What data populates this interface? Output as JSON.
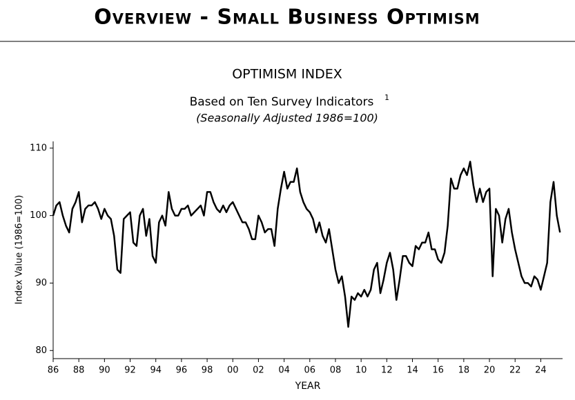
{
  "chart_data": {
    "type": "line",
    "header": "Overview - Small Business Optimism",
    "title": "OPTIMISM INDEX",
    "subtitle": "Based on Ten Survey Indicators",
    "subtitle_footnote": "1",
    "note": "(Seasonally Adjusted 1986=100)",
    "ylabel": "Index Value (1986=100)",
    "xlabel": "YEAR",
    "color": "#000000",
    "xlim": [
      1986,
      2025.7
    ],
    "ylim": [
      78.8,
      111
    ],
    "yticks": [
      80,
      90,
      100,
      110
    ],
    "xticks": [
      {
        "value": 1986,
        "label": "86"
      },
      {
        "value": 1988,
        "label": "88"
      },
      {
        "value": 1990,
        "label": "90"
      },
      {
        "value": 1992,
        "label": "92"
      },
      {
        "value": 1994,
        "label": "94"
      },
      {
        "value": 1996,
        "label": "96"
      },
      {
        "value": 1998,
        "label": "98"
      },
      {
        "value": 2000,
        "label": "00"
      },
      {
        "value": 2002,
        "label": "02"
      },
      {
        "value": 2004,
        "label": "04"
      },
      {
        "value": 2006,
        "label": "06"
      },
      {
        "value": 2008,
        "label": "08"
      },
      {
        "value": 2010,
        "label": "10"
      },
      {
        "value": 2012,
        "label": "12"
      },
      {
        "value": 2014,
        "label": "14"
      },
      {
        "value": 2016,
        "label": "16"
      },
      {
        "value": 2018,
        "label": "18"
      },
      {
        "value": 2020,
        "label": "20"
      },
      {
        "value": 2022,
        "label": "22"
      },
      {
        "value": 2024,
        "label": "24"
      }
    ],
    "x": [
      1986,
      1986.25,
      1986.5,
      1986.75,
      1987,
      1987.25,
      1987.5,
      1987.75,
      1988,
      1988.25,
      1988.5,
      1988.75,
      1989,
      1989.25,
      1989.5,
      1989.75,
      1990,
      1990.25,
      1990.5,
      1990.75,
      1991,
      1991.25,
      1991.5,
      1991.75,
      1992,
      1992.25,
      1992.5,
      1992.75,
      1993,
      1993.25,
      1993.5,
      1993.75,
      1994,
      1994.25,
      1994.5,
      1994.75,
      1995,
      1995.25,
      1995.5,
      1995.75,
      1996,
      1996.25,
      1996.5,
      1996.75,
      1997,
      1997.25,
      1997.5,
      1997.75,
      1998,
      1998.25,
      1998.5,
      1998.75,
      1999,
      1999.25,
      1999.5,
      1999.75,
      2000,
      2000.25,
      2000.5,
      2000.75,
      2001,
      2001.25,
      2001.5,
      2001.75,
      2002,
      2002.25,
      2002.5,
      2002.75,
      2003,
      2003.25,
      2003.5,
      2003.75,
      2004,
      2004.25,
      2004.5,
      2004.75,
      2005,
      2005.25,
      2005.5,
      2005.75,
      2006,
      2006.25,
      2006.5,
      2006.75,
      2007,
      2007.25,
      2007.5,
      2007.75,
      2008,
      2008.25,
      2008.5,
      2008.75,
      2009,
      2009.25,
      2009.5,
      2009.75,
      2010,
      2010.25,
      2010.5,
      2010.75,
      2011,
      2011.25,
      2011.5,
      2011.75,
      2012,
      2012.25,
      2012.5,
      2012.75,
      2013,
      2013.25,
      2013.5,
      2013.75,
      2014,
      2014.25,
      2014.5,
      2014.75,
      2015,
      2015.25,
      2015.5,
      2015.75,
      2016,
      2016.25,
      2016.5,
      2016.75,
      2017,
      2017.25,
      2017.5,
      2017.75,
      2018,
      2018.25,
      2018.5,
      2018.75,
      2019,
      2019.25,
      2019.5,
      2019.75,
      2020,
      2020.25,
      2020.5,
      2020.75,
      2021,
      2021.25,
      2021.5,
      2021.75,
      2022,
      2022.25,
      2022.5,
      2022.75,
      2023,
      2023.25,
      2023.5,
      2023.75,
      2024,
      2024.25,
      2024.5,
      2024.75,
      2025,
      2025.25,
      2025.5
    ],
    "values": [
      100,
      101.5,
      102,
      100,
      98.5,
      97.5,
      101,
      102,
      103.5,
      99,
      101,
      101.5,
      101.5,
      102,
      101,
      99.5,
      101,
      100,
      99.5,
      97,
      92,
      91.5,
      99.5,
      100,
      100.5,
      96,
      95.5,
      100,
      101,
      97,
      99.5,
      94,
      93,
      99,
      100,
      98.5,
      103.5,
      101,
      100,
      100,
      101,
      101,
      101.5,
      100,
      100.5,
      101,
      101.5,
      100,
      103.5,
      103.5,
      102,
      101,
      100.5,
      101.5,
      100.5,
      101.5,
      102,
      101,
      100,
      99,
      99,
      98,
      96.5,
      96.5,
      100,
      99,
      97.5,
      98,
      98,
      95.5,
      101,
      104,
      106.5,
      104,
      105,
      105,
      107,
      103.5,
      102,
      101,
      100.5,
      99.5,
      97.5,
      99,
      97,
      96,
      98,
      95,
      92,
      90,
      91,
      88,
      83.5,
      88,
      87.5,
      88.5,
      88,
      89,
      88,
      89,
      92,
      93,
      88.5,
      90.5,
      93,
      94.5,
      92,
      87.5,
      90.5,
      94,
      94,
      93,
      92.5,
      95.5,
      95,
      96,
      96,
      97.5,
      95,
      95,
      93.5,
      93,
      94.5,
      98.5,
      105.5,
      104,
      104,
      106,
      107,
      106,
      108,
      104.5,
      102,
      104,
      102,
      103.5,
      104,
      91,
      101,
      100,
      96,
      99.5,
      101,
      97.5,
      95,
      93,
      91,
      90,
      90,
      89.5,
      91,
      90.5,
      89,
      91,
      93,
      102,
      105,
      100,
      97.5
    ]
  }
}
